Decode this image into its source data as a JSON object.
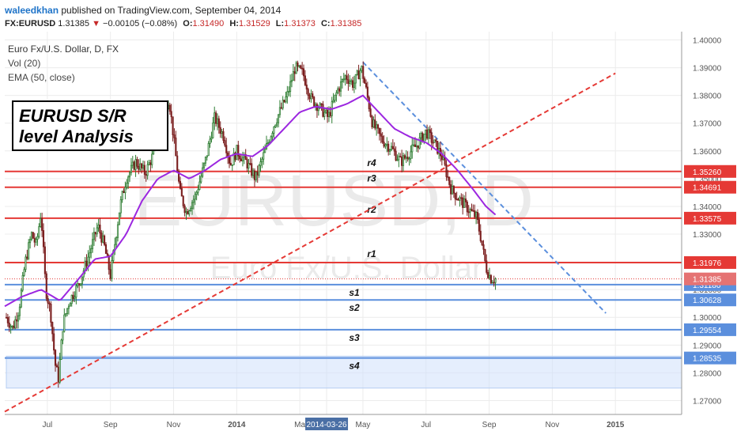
{
  "header": {
    "username": "waleedkhan",
    "published_text": "published on TradingView.com, September 04, 2014",
    "symbol": "FX:EURUSD",
    "last": "1.31385",
    "change_arrow": "▼",
    "change": "−0.00105 (−0.08%)",
    "o_label": "O:",
    "o_value": "1.31490",
    "h_label": "H:",
    "h_value": "1.31529",
    "l_label": "L:",
    "l_value": "1.31373",
    "c_label": "C:",
    "c_value": "1.31385"
  },
  "legend": {
    "line1": "Euro Fx/U.S. Dollar, D, FX",
    "line2": "Vol (20)",
    "line3": "EMA (50, close)"
  },
  "watermark": {
    "symbol": "EURUSD, D",
    "name": "Euro Fx/U.S. Dollar"
  },
  "annotation": {
    "line1": "EURUSD S/R",
    "line2": "level Analysis"
  },
  "colors": {
    "up": "#2e7d32",
    "down": "#7b1f1f",
    "ema": "#9c27e0",
    "resistance": "#e53935",
    "support": "#5b8fdd",
    "trend_up": "#e53935",
    "trend_down": "#5b8fdd",
    "zone": "#cfe0fb"
  },
  "chart_data": {
    "type": "candlestick",
    "title": "Euro Fx/U.S. Dollar, D, FX",
    "ylim": [
      1.265,
      1.403
    ],
    "y_ticks": [
      "1.27000",
      "1.28000",
      "1.29000",
      "1.30000",
      "1.31000",
      "1.32000",
      "1.33000",
      "1.34000",
      "1.35000",
      "1.36000",
      "1.37000",
      "1.38000",
      "1.39000",
      "1.40000"
    ],
    "x_ticks": [
      "Jul",
      "Sep",
      "Nov",
      "2014",
      "Ma",
      "2014-03-26",
      "May",
      "Jul",
      "Sep",
      "Nov",
      "2015"
    ],
    "x_tick_months": [
      0.5,
      2.5,
      4.5,
      6.5,
      8.5,
      9.35,
      10.5,
      12.5,
      14.5,
      16.5,
      18.5
    ],
    "x_range_months": [
      -0.85,
      20.6
    ],
    "current_price": 1.31385,
    "current_price_label": "1.31385",
    "resistance": [
      {
        "name": "r4",
        "value": 1.3526,
        "label": "1.35260"
      },
      {
        "name": "r3",
        "value": 1.34691,
        "label": "1.34691"
      },
      {
        "name": "r2",
        "value": 1.33575,
        "label": "1.33575"
      },
      {
        "name": "r1",
        "value": 1.31976,
        "label": "1.31976"
      }
    ],
    "support": [
      {
        "name": "s1",
        "value": 1.3118,
        "label": "1.31180"
      },
      {
        "name": "s2",
        "value": 1.30628,
        "label": "1.30628"
      },
      {
        "name": "s3",
        "value": 1.29554,
        "label": "1.29554"
      },
      {
        "name": "s4",
        "value": 1.28535,
        "label": "1.28535"
      }
    ],
    "support_zone": [
      1.2745,
      1.286
    ],
    "trend_up": {
      "from": [
        -0.85,
        1.266
      ],
      "to": [
        18.5,
        1.388
      ]
    },
    "trend_down": {
      "from": [
        10.5,
        1.392
      ],
      "to": [
        18.2,
        1.3015
      ]
    },
    "price_keypoints": [
      {
        "m": -0.8,
        "p": 1.3
      },
      {
        "m": -0.6,
        "p": 1.296
      },
      {
        "m": -0.4,
        "p": 1.303
      },
      {
        "m": -0.2,
        "p": 1.32
      },
      {
        "m": 0.0,
        "p": 1.33
      },
      {
        "m": 0.15,
        "p": 1.326
      },
      {
        "m": 0.3,
        "p": 1.338
      },
      {
        "m": 0.45,
        "p": 1.31
      },
      {
        "m": 0.6,
        "p": 1.302
      },
      {
        "m": 0.75,
        "p": 1.283
      },
      {
        "m": 0.85,
        "p": 1.278
      },
      {
        "m": 1.0,
        "p": 1.298
      },
      {
        "m": 1.2,
        "p": 1.306
      },
      {
        "m": 1.5,
        "p": 1.312
      },
      {
        "m": 1.8,
        "p": 1.322
      },
      {
        "m": 2.1,
        "p": 1.333
      },
      {
        "m": 2.3,
        "p": 1.326
      },
      {
        "m": 2.5,
        "p": 1.315
      },
      {
        "m": 2.8,
        "p": 1.34
      },
      {
        "m": 3.0,
        "p": 1.35
      },
      {
        "m": 3.3,
        "p": 1.356
      },
      {
        "m": 3.6,
        "p": 1.352
      },
      {
        "m": 3.9,
        "p": 1.36
      },
      {
        "m": 4.1,
        "p": 1.372
      },
      {
        "m": 4.35,
        "p": 1.379
      },
      {
        "m": 4.5,
        "p": 1.365
      },
      {
        "m": 4.7,
        "p": 1.345
      },
      {
        "m": 4.9,
        "p": 1.338
      },
      {
        "m": 5.2,
        "p": 1.344
      },
      {
        "m": 5.5,
        "p": 1.356
      },
      {
        "m": 5.8,
        "p": 1.372
      },
      {
        "m": 6.1,
        "p": 1.365
      },
      {
        "m": 6.3,
        "p": 1.355
      },
      {
        "m": 6.5,
        "p": 1.36
      },
      {
        "m": 6.8,
        "p": 1.356
      },
      {
        "m": 7.1,
        "p": 1.35
      },
      {
        "m": 7.4,
        "p": 1.36
      },
      {
        "m": 7.7,
        "p": 1.37
      },
      {
        "m": 8.1,
        "p": 1.38
      },
      {
        "m": 8.35,
        "p": 1.39
      },
      {
        "m": 8.6,
        "p": 1.388
      },
      {
        "m": 8.85,
        "p": 1.379
      },
      {
        "m": 9.1,
        "p": 1.376
      },
      {
        "m": 9.4,
        "p": 1.372
      },
      {
        "m": 9.7,
        "p": 1.382
      },
      {
        "m": 9.95,
        "p": 1.387
      },
      {
        "m": 10.2,
        "p": 1.384
      },
      {
        "m": 10.45,
        "p": 1.39
      },
      {
        "m": 10.6,
        "p": 1.382
      },
      {
        "m": 10.8,
        "p": 1.37
      },
      {
        "m": 11.1,
        "p": 1.364
      },
      {
        "m": 11.4,
        "p": 1.361
      },
      {
        "m": 11.7,
        "p": 1.356
      },
      {
        "m": 11.95,
        "p": 1.359
      },
      {
        "m": 12.2,
        "p": 1.362
      },
      {
        "m": 12.5,
        "p": 1.367
      },
      {
        "m": 12.8,
        "p": 1.362
      },
      {
        "m": 13.0,
        "p": 1.358
      },
      {
        "m": 13.3,
        "p": 1.346
      },
      {
        "m": 13.6,
        "p": 1.342
      },
      {
        "m": 13.85,
        "p": 1.339
      },
      {
        "m": 14.1,
        "p": 1.336
      },
      {
        "m": 14.25,
        "p": 1.328
      },
      {
        "m": 14.4,
        "p": 1.318
      },
      {
        "m": 14.55,
        "p": 1.314
      },
      {
        "m": 14.7,
        "p": 1.3138
      }
    ],
    "ema_keypoints": [
      {
        "m": -0.85,
        "p": 1.304
      },
      {
        "m": -0.3,
        "p": 1.3075
      },
      {
        "m": 0.3,
        "p": 1.31
      },
      {
        "m": 0.9,
        "p": 1.306
      },
      {
        "m": 1.5,
        "p": 1.314
      },
      {
        "m": 2.0,
        "p": 1.321
      },
      {
        "m": 2.5,
        "p": 1.322
      },
      {
        "m": 3.0,
        "p": 1.33
      },
      {
        "m": 3.5,
        "p": 1.342
      },
      {
        "m": 4.0,
        "p": 1.35
      },
      {
        "m": 4.5,
        "p": 1.353
      },
      {
        "m": 5.0,
        "p": 1.35
      },
      {
        "m": 5.5,
        "p": 1.353
      },
      {
        "m": 6.0,
        "p": 1.357
      },
      {
        "m": 6.5,
        "p": 1.359
      },
      {
        "m": 7.0,
        "p": 1.358
      },
      {
        "m": 7.5,
        "p": 1.362
      },
      {
        "m": 8.0,
        "p": 1.368
      },
      {
        "m": 8.5,
        "p": 1.374
      },
      {
        "m": 9.0,
        "p": 1.376
      },
      {
        "m": 9.5,
        "p": 1.375
      },
      {
        "m": 10.0,
        "p": 1.377
      },
      {
        "m": 10.5,
        "p": 1.38
      },
      {
        "m": 11.0,
        "p": 1.374
      },
      {
        "m": 11.5,
        "p": 1.368
      },
      {
        "m": 12.0,
        "p": 1.365
      },
      {
        "m": 12.5,
        "p": 1.363
      },
      {
        "m": 13.0,
        "p": 1.359
      },
      {
        "m": 13.5,
        "p": 1.353
      },
      {
        "m": 14.0,
        "p": 1.346
      },
      {
        "m": 14.4,
        "p": 1.34
      },
      {
        "m": 14.7,
        "p": 1.337
      }
    ]
  }
}
